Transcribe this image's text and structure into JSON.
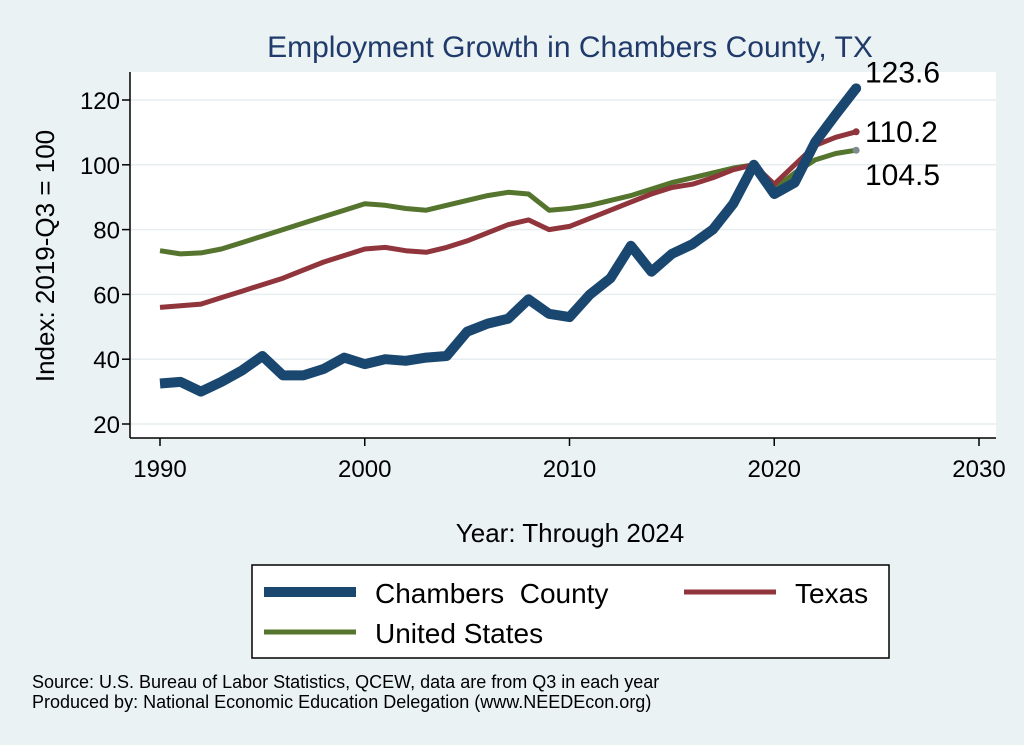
{
  "chart_data": {
    "type": "line",
    "title": "Employment Growth in Chambers County, TX",
    "xlabel": "Year: Through 2024",
    "ylabel": "Index: 2019-Q3 = 100",
    "xlim": [
      1990,
      2030
    ],
    "ylim": [
      20,
      128
    ],
    "xticks": [
      1990,
      2000,
      2010,
      2020,
      2030
    ],
    "yticks": [
      20,
      40,
      60,
      80,
      100,
      120
    ],
    "grid": true,
    "legend_position": "bottom",
    "x": [
      1990,
      1991,
      1992,
      1993,
      1994,
      1995,
      1996,
      1997,
      1998,
      1999,
      2000,
      2001,
      2002,
      2003,
      2004,
      2005,
      2006,
      2007,
      2008,
      2009,
      2010,
      2011,
      2012,
      2013,
      2014,
      2015,
      2016,
      2017,
      2018,
      2019,
      2020,
      2021,
      2022,
      2023,
      2024
    ],
    "series": [
      {
        "name": "Chambers  County",
        "color": "#1a476f",
        "values": [
          32.5,
          33,
          30,
          33,
          36.5,
          41,
          35,
          35,
          37,
          40.5,
          38.5,
          40,
          39.5,
          40.5,
          41,
          48.5,
          51,
          52.5,
          58.5,
          54,
          53,
          60,
          65,
          75,
          67,
          72.5,
          75.5,
          80,
          88,
          100,
          91,
          94.5,
          107,
          115.5,
          123.6
        ]
      },
      {
        "name": "Texas",
        "color": "#90353b",
        "values": [
          56,
          56.5,
          57,
          59,
          61,
          63,
          65,
          67.5,
          70,
          72,
          74,
          74.5,
          73.5,
          73,
          74.5,
          76.5,
          79,
          81.5,
          83,
          80,
          81,
          83.5,
          86,
          88.5,
          91,
          93,
          94,
          96,
          98.5,
          100,
          94,
          100,
          106,
          108.5,
          110.2
        ]
      },
      {
        "name": "United States",
        "color": "#55752f",
        "values": [
          73.5,
          72.5,
          72.8,
          74,
          76,
          78,
          80,
          82,
          84,
          86,
          88,
          87.5,
          86.5,
          86,
          87.5,
          89,
          90.5,
          91.5,
          91,
          86,
          86.5,
          87.5,
          89,
          90.5,
          92.5,
          94.5,
          96,
          97.5,
          99,
          100,
          92.5,
          97.5,
          101.5,
          103.5,
          104.5
        ]
      }
    ],
    "end_labels": [
      "123.6",
      "110.2",
      "104.5"
    ],
    "source": "Source: U.S. Bureau of Labor Statistics, QCEW, data are from Q3 in each year",
    "produced_by": "Produced by: National Economic Education Delegation (www.NEEDEcon.org)"
  }
}
